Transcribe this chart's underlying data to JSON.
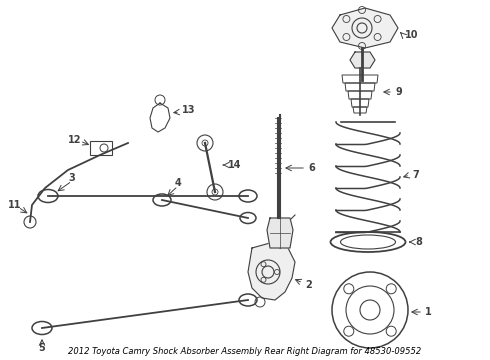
{
  "title": "2012 Toyota Camry Shock Absorber Assembly Rear Right Diagram for 48530-09552",
  "bg_color": "#ffffff",
  "line_color": "#404040",
  "label_color": "#000000",
  "label_fontsize": 7,
  "title_fontsize": 6,
  "fig_width": 4.9,
  "fig_height": 3.6,
  "dpi": 100
}
